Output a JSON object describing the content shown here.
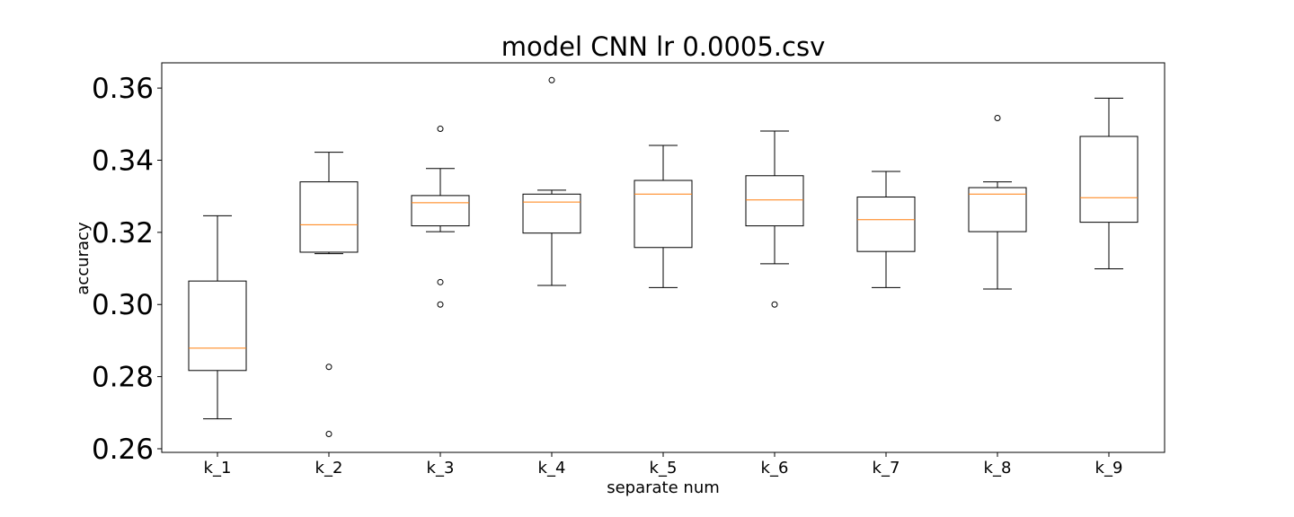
{
  "chart_data": {
    "type": "box",
    "title": "model CNN lr 0.0005.csv",
    "xlabel": "separate num",
    "ylabel": "accuracy",
    "ylim": [
      0.259,
      0.367
    ],
    "yticks": [
      "0.26",
      "0.28",
      "0.30",
      "0.32",
      "0.34",
      "0.36"
    ],
    "ytick_values": [
      0.26,
      0.28,
      0.3,
      0.32,
      0.34,
      0.36
    ],
    "grid": false,
    "colors": {
      "box": "#000000",
      "median": "#ff7f0e",
      "flier": "#000000"
    },
    "categories": [
      "k_1",
      "k_2",
      "k_3",
      "k_4",
      "k_5",
      "k_6",
      "k_7",
      "k_8",
      "k_9"
    ],
    "boxes": [
      {
        "category": "k_1",
        "whislo": 0.2683,
        "q1": 0.2817,
        "med": 0.2879,
        "q3": 0.3065,
        "whishi": 0.3246,
        "fliers": []
      },
      {
        "category": "k_2",
        "whislo": 0.3141,
        "q1": 0.3145,
        "med": 0.3221,
        "q3": 0.334,
        "whishi": 0.3422,
        "fliers": [
          0.2827,
          0.2641
        ]
      },
      {
        "category": "k_3",
        "whislo": 0.3202,
        "q1": 0.3218,
        "med": 0.3282,
        "q3": 0.3302,
        "whishi": 0.3377,
        "fliers": [
          0.3487,
          0.3062,
          0.3
        ]
      },
      {
        "category": "k_4",
        "whislo": 0.3053,
        "q1": 0.3198,
        "med": 0.3284,
        "q3": 0.3306,
        "whishi": 0.3317,
        "fliers": [
          0.3622
        ]
      },
      {
        "category": "k_5",
        "whislo": 0.3047,
        "q1": 0.3158,
        "med": 0.3306,
        "q3": 0.3344,
        "whishi": 0.3441,
        "fliers": []
      },
      {
        "category": "k_6",
        "whislo": 0.3113,
        "q1": 0.3218,
        "med": 0.329,
        "q3": 0.3357,
        "whishi": 0.3481,
        "fliers": [
          0.3
        ]
      },
      {
        "category": "k_7",
        "whislo": 0.3047,
        "q1": 0.3147,
        "med": 0.3235,
        "q3": 0.3298,
        "whishi": 0.3369,
        "fliers": []
      },
      {
        "category": "k_8",
        "whislo": 0.3043,
        "q1": 0.3202,
        "med": 0.3306,
        "q3": 0.3324,
        "whishi": 0.334,
        "fliers": [
          0.3517
        ]
      },
      {
        "category": "k_9",
        "whislo": 0.3099,
        "q1": 0.3228,
        "med": 0.3296,
        "q3": 0.3466,
        "whishi": 0.3572,
        "fliers": []
      }
    ]
  }
}
